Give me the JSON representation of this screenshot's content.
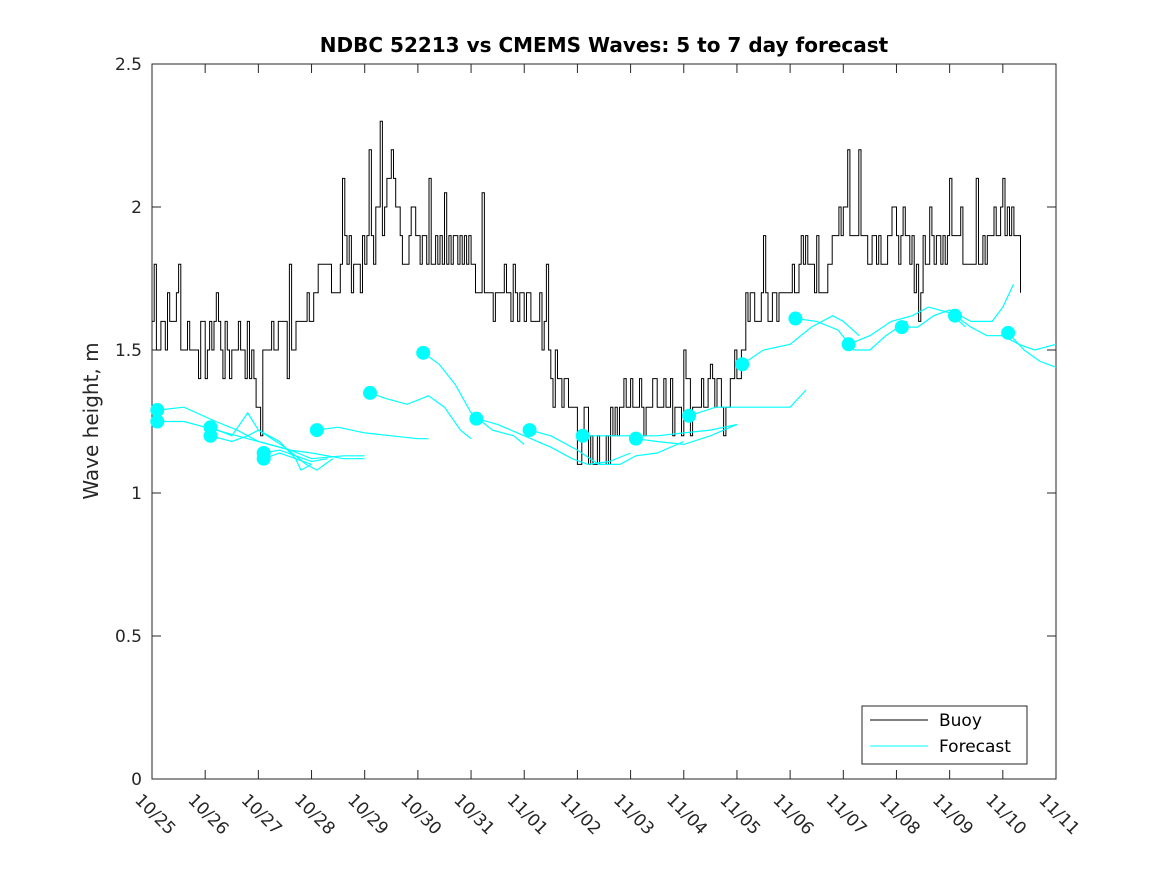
{
  "chart_data": {
    "type": "line",
    "title": "NDBC 52213 vs CMEMS Waves: 5 to 7 day forecast",
    "xlabel": "",
    "ylabel": "Wave height, m",
    "xlim": [
      0,
      17
    ],
    "ylim": [
      0,
      2.5
    ],
    "x_tick_labels": [
      "10/25",
      "10/26",
      "10/27",
      "10/28",
      "10/29",
      "10/30",
      "10/31",
      "11/01",
      "11/02",
      "11/03",
      "11/04",
      "11/05",
      "11/06",
      "11/07",
      "11/08",
      "11/09",
      "11/10",
      "11/11"
    ],
    "y_ticks": [
      0,
      0.5,
      1,
      1.5,
      2,
      2.5
    ],
    "y_tick_labels": [
      "0",
      "0.5",
      "1",
      "1.5",
      "2",
      "2.5"
    ],
    "legend": {
      "location": "bottom-right",
      "entries": [
        "Buoy",
        "Forecast"
      ]
    },
    "colors": {
      "buoy": "#000000",
      "forecast": "#00ffff",
      "axis": "#262626"
    },
    "buoy_control_points": [
      [
        0.0,
        1.6
      ],
      [
        0.25,
        1.55
      ],
      [
        0.45,
        1.65
      ],
      [
        0.6,
        1.5
      ],
      [
        0.8,
        1.55
      ],
      [
        1.0,
        1.5
      ],
      [
        1.2,
        1.6
      ],
      [
        1.4,
        1.45
      ],
      [
        1.6,
        1.55
      ],
      [
        1.8,
        1.5
      ],
      [
        1.9,
        1.4
      ],
      [
        2.0,
        1.3
      ],
      [
        2.1,
        1.45
      ],
      [
        2.3,
        1.6
      ],
      [
        2.45,
        1.55
      ],
      [
        2.6,
        1.45
      ],
      [
        2.8,
        1.6
      ],
      [
        3.0,
        1.6
      ],
      [
        3.2,
        1.75
      ],
      [
        3.5,
        1.8
      ],
      [
        3.8,
        1.85
      ],
      [
        4.0,
        1.8
      ],
      [
        4.2,
        1.9
      ],
      [
        4.4,
        2.05
      ],
      [
        4.6,
        2.0
      ],
      [
        4.8,
        1.9
      ],
      [
        5.0,
        1.95
      ],
      [
        5.2,
        1.85
      ],
      [
        5.4,
        1.9
      ],
      [
        5.6,
        1.9
      ],
      [
        5.8,
        1.85
      ],
      [
        6.0,
        1.8
      ],
      [
        6.2,
        1.75
      ],
      [
        6.4,
        1.75
      ],
      [
        6.6,
        1.7
      ],
      [
        6.8,
        1.65
      ],
      [
        7.0,
        1.6
      ],
      [
        7.2,
        1.6
      ],
      [
        7.4,
        1.5
      ],
      [
        7.6,
        1.4
      ],
      [
        7.8,
        1.3
      ],
      [
        8.0,
        1.2
      ],
      [
        8.2,
        1.2
      ],
      [
        8.4,
        1.15
      ],
      [
        8.6,
        1.25
      ],
      [
        8.8,
        1.3
      ],
      [
        9.0,
        1.3
      ],
      [
        9.2,
        1.3
      ],
      [
        9.4,
        1.35
      ],
      [
        9.6,
        1.35
      ],
      [
        9.8,
        1.3
      ],
      [
        10.0,
        1.35
      ],
      [
        10.2,
        1.3
      ],
      [
        10.4,
        1.3
      ],
      [
        10.6,
        1.3
      ],
      [
        10.8,
        1.35
      ],
      [
        11.0,
        1.45
      ],
      [
        11.2,
        1.6
      ],
      [
        11.4,
        1.65
      ],
      [
        11.6,
        1.7
      ],
      [
        11.8,
        1.65
      ],
      [
        12.0,
        1.75
      ],
      [
        12.2,
        1.75
      ],
      [
        12.4,
        1.8
      ],
      [
        12.6,
        1.75
      ],
      [
        12.8,
        1.85
      ],
      [
        13.0,
        2.05
      ],
      [
        13.2,
        1.9
      ],
      [
        13.4,
        1.85
      ],
      [
        13.6,
        1.9
      ],
      [
        13.8,
        1.85
      ],
      [
        14.0,
        1.95
      ],
      [
        14.2,
        1.8
      ],
      [
        14.4,
        1.8
      ],
      [
        14.6,
        1.85
      ],
      [
        14.8,
        1.9
      ],
      [
        15.0,
        1.95
      ],
      [
        15.2,
        1.9
      ],
      [
        15.4,
        1.85
      ],
      [
        15.6,
        1.9
      ],
      [
        15.8,
        1.85
      ],
      [
        16.0,
        1.95
      ],
      [
        16.2,
        1.95
      ],
      [
        16.35,
        1.8
      ]
    ],
    "buoy_spikes": [
      [
        0.05,
        1.8
      ],
      [
        0.5,
        1.8
      ],
      [
        1.2,
        1.7
      ],
      [
        2.05,
        1.2
      ],
      [
        2.6,
        1.8
      ],
      [
        3.6,
        2.1
      ],
      [
        4.1,
        2.2
      ],
      [
        4.3,
        2.3
      ],
      [
        4.5,
        2.2
      ],
      [
        5.2,
        2.1
      ],
      [
        5.5,
        2.05
      ],
      [
        6.2,
        2.05
      ],
      [
        7.4,
        1.8
      ],
      [
        8.05,
        1.1
      ],
      [
        8.5,
        1.1
      ],
      [
        10.0,
        1.5
      ],
      [
        10.5,
        1.45
      ],
      [
        11.5,
        1.9
      ],
      [
        13.1,
        2.2
      ],
      [
        13.3,
        2.2
      ],
      [
        14.4,
        1.6
      ],
      [
        15.0,
        2.1
      ],
      [
        15.5,
        2.1
      ],
      [
        16.0,
        2.1
      ]
    ],
    "forecast_series": [
      {
        "start": [
          0.1,
          1.29
        ],
        "points": [
          [
            0.1,
            1.29
          ],
          [
            0.6,
            1.3
          ],
          [
            1.2,
            1.25
          ],
          [
            1.6,
            1.22
          ],
          [
            2.0,
            1.18
          ],
          [
            2.6,
            1.15
          ],
          [
            3.0,
            1.12
          ],
          [
            3.6,
            1.13
          ],
          [
            4.0,
            1.13
          ]
        ]
      },
      {
        "start": [
          0.1,
          1.25
        ],
        "points": [
          [
            0.1,
            1.25
          ],
          [
            0.6,
            1.25
          ],
          [
            1.2,
            1.22
          ],
          [
            1.6,
            1.2
          ],
          [
            2.0,
            1.18
          ],
          [
            2.6,
            1.15
          ],
          [
            3.0,
            1.14
          ],
          [
            3.6,
            1.12
          ],
          [
            4.0,
            1.12
          ]
        ]
      },
      {
        "start": [
          1.1,
          1.23
        ],
        "points": [
          [
            1.1,
            1.23
          ],
          [
            1.5,
            1.2
          ],
          [
            1.8,
            1.28
          ],
          [
            2.0,
            1.22
          ],
          [
            2.5,
            1.16
          ],
          [
            2.9,
            1.1
          ],
          [
            3.1,
            1.08
          ],
          [
            3.4,
            1.12
          ]
        ]
      },
      {
        "start": [
          1.1,
          1.2
        ],
        "points": [
          [
            1.1,
            1.2
          ],
          [
            1.5,
            1.18
          ],
          [
            1.8,
            1.2
          ],
          [
            2.0,
            1.22
          ],
          [
            2.4,
            1.18
          ],
          [
            2.7,
            1.12
          ],
          [
            3.0,
            1.1
          ]
        ]
      },
      {
        "start": [
          2.1,
          1.14
        ],
        "points": [
          [
            2.1,
            1.14
          ],
          [
            2.4,
            1.15
          ],
          [
            2.7,
            1.13
          ],
          [
            3.0,
            1.11
          ],
          [
            3.3,
            1.12
          ]
        ]
      },
      {
        "start": [
          2.1,
          1.12
        ],
        "points": [
          [
            2.1,
            1.12
          ],
          [
            2.4,
            1.14
          ],
          [
            2.7,
            1.12
          ],
          [
            2.8,
            1.08
          ],
          [
            3.0,
            1.1
          ]
        ]
      },
      {
        "start": [
          3.1,
          1.22
        ],
        "points": [
          [
            3.1,
            1.22
          ],
          [
            3.5,
            1.23
          ],
          [
            4.0,
            1.21
          ],
          [
            4.5,
            1.2
          ],
          [
            5.0,
            1.19
          ],
          [
            5.2,
            1.19
          ]
        ]
      },
      {
        "start": [
          4.1,
          1.35
        ],
        "points": [
          [
            4.1,
            1.35
          ],
          [
            4.4,
            1.33
          ],
          [
            4.8,
            1.31
          ],
          [
            5.2,
            1.34
          ],
          [
            5.5,
            1.3
          ],
          [
            5.8,
            1.22
          ],
          [
            6.0,
            1.19
          ]
        ]
      },
      {
        "start": [
          5.1,
          1.49
        ],
        "points": [
          [
            5.1,
            1.49
          ],
          [
            5.4,
            1.45
          ],
          [
            5.7,
            1.38
          ],
          [
            6.0,
            1.28
          ],
          [
            6.4,
            1.22
          ],
          [
            6.8,
            1.2
          ],
          [
            7.0,
            1.17
          ]
        ]
      },
      {
        "start": [
          6.1,
          1.26
        ],
        "points": [
          [
            6.1,
            1.26
          ],
          [
            6.5,
            1.24
          ],
          [
            7.0,
            1.2
          ],
          [
            7.5,
            1.16
          ],
          [
            7.9,
            1.12
          ],
          [
            8.2,
            1.1
          ],
          [
            8.6,
            1.11
          ],
          [
            9.0,
            1.14
          ]
        ]
      },
      {
        "start": [
          7.1,
          1.22
        ],
        "points": [
          [
            7.1,
            1.22
          ],
          [
            7.5,
            1.2
          ],
          [
            8.0,
            1.15
          ],
          [
            8.4,
            1.1
          ],
          [
            8.8,
            1.1
          ],
          [
            9.1,
            1.13
          ],
          [
            9.5,
            1.14
          ],
          [
            10.0,
            1.18
          ]
        ]
      },
      {
        "start": [
          8.1,
          1.2
        ],
        "points": [
          [
            8.1,
            1.2
          ],
          [
            8.5,
            1.2
          ],
          [
            9.0,
            1.2
          ],
          [
            9.5,
            1.2
          ],
          [
            10.0,
            1.21
          ],
          [
            10.5,
            1.22
          ],
          [
            11.0,
            1.24
          ]
        ]
      },
      {
        "start": [
          9.1,
          1.19
        ],
        "points": [
          [
            9.1,
            1.19
          ],
          [
            9.5,
            1.18
          ],
          [
            10.0,
            1.17
          ],
          [
            10.5,
            1.2
          ],
          [
            11.0,
            1.24
          ]
        ]
      },
      {
        "start": [
          10.1,
          1.27
        ],
        "points": [
          [
            10.1,
            1.27
          ],
          [
            10.6,
            1.3
          ],
          [
            11.0,
            1.3
          ],
          [
            11.5,
            1.3
          ],
          [
            12.0,
            1.3
          ],
          [
            12.3,
            1.36
          ]
        ]
      },
      {
        "start": [
          11.1,
          1.45
        ],
        "points": [
          [
            11.1,
            1.45
          ],
          [
            11.5,
            1.5
          ],
          [
            12.0,
            1.52
          ],
          [
            12.4,
            1.58
          ],
          [
            12.8,
            1.62
          ],
          [
            13.0,
            1.6
          ],
          [
            13.3,
            1.55
          ]
        ]
      },
      {
        "start": [
          12.1,
          1.61
        ],
        "points": [
          [
            12.1,
            1.61
          ],
          [
            12.5,
            1.6
          ],
          [
            12.9,
            1.57
          ],
          [
            13.2,
            1.5
          ],
          [
            13.5,
            1.5
          ],
          [
            13.8,
            1.55
          ],
          [
            14.2,
            1.6
          ]
        ]
      },
      {
        "start": [
          13.1,
          1.52
        ],
        "points": [
          [
            13.1,
            1.52
          ],
          [
            13.5,
            1.55
          ],
          [
            13.9,
            1.6
          ],
          [
            14.3,
            1.62
          ],
          [
            14.6,
            1.65
          ],
          [
            15.0,
            1.63
          ],
          [
            15.3,
            1.58
          ]
        ]
      },
      {
        "start": [
          14.1,
          1.58
        ],
        "points": [
          [
            14.1,
            1.58
          ],
          [
            14.4,
            1.58
          ],
          [
            14.7,
            1.62
          ],
          [
            15.0,
            1.64
          ],
          [
            15.4,
            1.6
          ],
          [
            15.8,
            1.6
          ],
          [
            16.0,
            1.65
          ],
          [
            16.2,
            1.73
          ]
        ]
      },
      {
        "start": [
          15.1,
          1.62
        ],
        "points": [
          [
            15.1,
            1.62
          ],
          [
            15.4,
            1.58
          ],
          [
            15.7,
            1.55
          ],
          [
            16.0,
            1.55
          ],
          [
            16.3,
            1.52
          ],
          [
            16.6,
            1.5
          ],
          [
            17.0,
            1.52
          ]
        ]
      },
      {
        "start": [
          16.1,
          1.56
        ],
        "points": [
          [
            16.1,
            1.56
          ],
          [
            16.4,
            1.5
          ],
          [
            16.7,
            1.46
          ],
          [
            17.0,
            1.44
          ]
        ]
      }
    ]
  }
}
